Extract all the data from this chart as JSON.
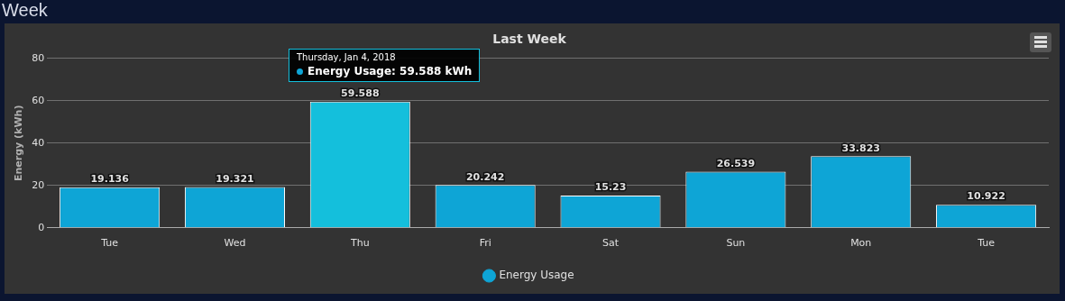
{
  "chart_data": {
    "type": "bar",
    "title": "Last Week",
    "subtitle": "Week",
    "ylabel": "Energy (kWh)",
    "categories": [
      "Tue",
      "Wed",
      "Thu",
      "Fri",
      "Sat",
      "Sun",
      "Mon",
      "Tue"
    ],
    "series": [
      {
        "name": "Energy Usage",
        "color": "#0ea5d6",
        "colors": [
          "#0ea5d6",
          "#0ea5d6",
          "#14bfdc",
          "#0ea5d6",
          "#0ea5d6",
          "#0ea5d6",
          "#0ea5d6",
          "#0ea5d6"
        ],
        "values": [
          19.136,
          19.321,
          59.588,
          20.242,
          15.23,
          26.539,
          33.823,
          10.922
        ]
      }
    ],
    "ylim": [
      0,
      80
    ],
    "yticks": [
      0,
      20,
      40,
      60,
      80
    ],
    "grid": "y",
    "legend": "bottom",
    "data_labels": true,
    "annotations": [
      "Thursday, Jan 4, 2018",
      "Energy Usage: 59.588 kWh"
    ]
  }
}
